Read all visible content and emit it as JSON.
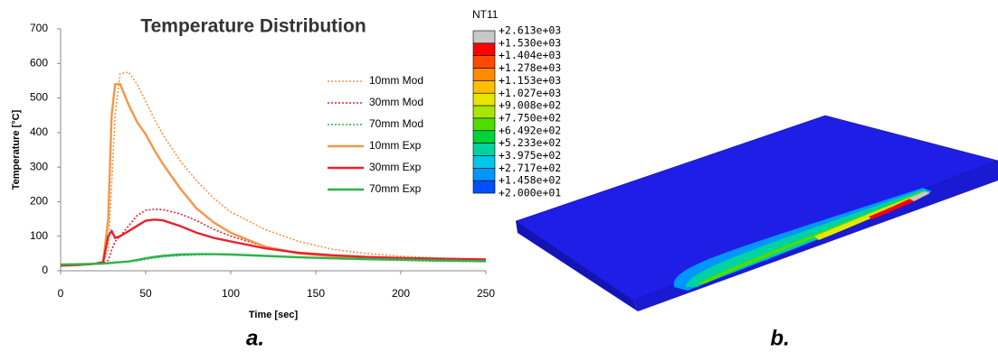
{
  "chart_data": [
    {
      "type": "line",
      "title": "Temperature Distribution",
      "x_label": "Time [sec]",
      "y_label": "Temperature [°C]",
      "caption": "a.",
      "x": [
        0,
        10,
        20,
        25,
        28,
        30,
        32,
        35,
        40,
        45,
        50,
        55,
        60,
        70,
        80,
        90,
        100,
        120,
        140,
        160,
        180,
        200,
        220,
        250
      ],
      "series": [
        {
          "name": "10mm Mod",
          "color": "#f79646",
          "style": "dotted",
          "values": [
            15,
            17,
            20,
            25,
            60,
            250,
            450,
            570,
            575,
            540,
            490,
            440,
            395,
            320,
            260,
            210,
            170,
            120,
            85,
            62,
            50,
            42,
            37,
            32
          ]
        },
        {
          "name": "30mm Mod",
          "color": "#e8212b",
          "style": "dotted",
          "values": [
            15,
            17,
            20,
            22,
            30,
            60,
            85,
            100,
            130,
            160,
            175,
            178,
            177,
            165,
            145,
            120,
            100,
            70,
            52,
            42,
            37,
            34,
            32,
            30
          ]
        },
        {
          "name": "70mm Mod",
          "color": "#2db34a",
          "style": "dotted",
          "values": [
            15,
            17,
            19,
            20,
            21,
            22,
            23,
            24,
            26,
            29,
            33,
            37,
            40,
            44,
            46,
            47,
            47,
            44,
            39,
            35,
            32,
            30,
            28,
            26
          ]
        },
        {
          "name": "10mm Exp",
          "color": "#f79646",
          "style": "solid",
          "values": [
            15,
            17,
            20,
            25,
            150,
            450,
            540,
            540,
            480,
            430,
            395,
            350,
            310,
            240,
            180,
            140,
            110,
            70,
            50,
            42,
            38,
            35,
            33,
            31
          ]
        },
        {
          "name": "30mm Exp",
          "color": "#e8212b",
          "style": "solid",
          "values": [
            15,
            17,
            20,
            25,
            100,
            115,
            95,
            100,
            115,
            130,
            145,
            148,
            146,
            130,
            110,
            95,
            85,
            65,
            52,
            45,
            40,
            37,
            35,
            33
          ]
        },
        {
          "name": "70mm Exp",
          "color": "#2db34a",
          "style": "solid",
          "values": [
            18,
            19,
            20,
            21,
            22,
            23,
            24,
            25,
            27,
            31,
            36,
            40,
            43,
            47,
            48,
            48,
            47,
            43,
            39,
            36,
            34,
            32,
            30,
            28
          ]
        }
      ],
      "xlim": [
        0,
        250
      ],
      "xticks": [
        0,
        50,
        100,
        150,
        200,
        250
      ],
      "ylim": [
        0,
        700
      ],
      "yticks": [
        0,
        100,
        200,
        300,
        400,
        500,
        600,
        700
      ],
      "grid": false
    },
    {
      "type": "contour",
      "title": "NT11",
      "caption": "b.",
      "levels": [
        {
          "value": 2613,
          "label": "+2.613e+03"
        },
        {
          "value": 1530,
          "label": "+1.530e+03"
        },
        {
          "value": 1404,
          "label": "+1.404e+03"
        },
        {
          "value": 1278,
          "label": "+1.278e+03"
        },
        {
          "value": 1153,
          "label": "+1.153e+03"
        },
        {
          "value": 1027,
          "label": "+1.027e+03"
        },
        {
          "value": 900.8,
          "label": "+9.008e+02"
        },
        {
          "value": 775,
          "label": "+7.750e+02"
        },
        {
          "value": 649.2,
          "label": "+6.492e+02"
        },
        {
          "value": 523.3,
          "label": "+5.233e+02"
        },
        {
          "value": 397.5,
          "label": "+3.975e+02"
        },
        {
          "value": 271.7,
          "label": "+2.717e+02"
        },
        {
          "value": 145.8,
          "label": "+1.458e+02"
        },
        {
          "value": 20,
          "label": "+2.000e+01"
        }
      ],
      "colors": [
        "#c8c8c8",
        "#ff0000",
        "#ff4a00",
        "#ff8c00",
        "#ffbe00",
        "#e6e600",
        "#a8e600",
        "#50dc00",
        "#00d23c",
        "#00d2a0",
        "#00c8e6",
        "#0096ff",
        "#0050ff"
      ]
    }
  ]
}
